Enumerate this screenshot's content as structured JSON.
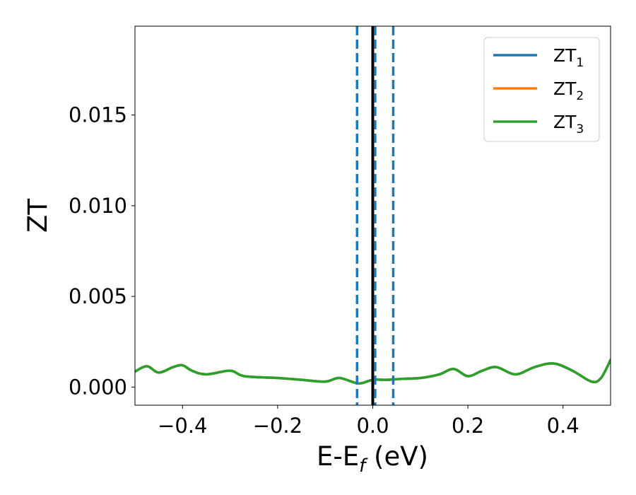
{
  "chart_data": {
    "type": "line",
    "title": "",
    "xlabel": {
      "main": "E-E",
      "sub": "f",
      "suffix": " (eV)"
    },
    "ylabel": "ZT",
    "xlim": [
      -0.5,
      0.5
    ],
    "ylim": [
      -0.001,
      0.0199
    ],
    "xticks": [
      -0.4,
      -0.2,
      0.0,
      0.2,
      0.4
    ],
    "xtick_labels": [
      "−0.4",
      "−0.2",
      "0.0",
      "0.2",
      "0.4"
    ],
    "yticks": [
      0.0,
      0.005,
      0.01,
      0.015
    ],
    "ytick_labels": [
      "0.000",
      "0.005",
      "0.010",
      "0.015"
    ],
    "grid": false,
    "legend_position": "top-right",
    "series": [
      {
        "name": "ZT",
        "sub": "1",
        "color": "#1f77b4",
        "x": [
          -0.5,
          -0.475,
          -0.45,
          -0.42,
          -0.4,
          -0.38,
          -0.35,
          -0.3,
          -0.27,
          -0.2,
          -0.15,
          -0.1,
          -0.07,
          -0.03,
          0.0,
          0.03,
          0.06,
          0.1,
          0.14,
          0.17,
          0.2,
          0.23,
          0.26,
          0.3,
          0.34,
          0.38,
          0.42,
          0.46,
          0.48,
          0.5
        ],
        "y": [
          0.00085,
          0.00115,
          0.0008,
          0.0011,
          0.0012,
          0.0009,
          0.0007,
          0.0009,
          0.0006,
          0.0005,
          0.0004,
          0.0003,
          0.0005,
          0.0002,
          0.0004,
          0.0004,
          0.00045,
          0.0005,
          0.0007,
          0.001,
          0.0006,
          0.0009,
          0.0011,
          0.0007,
          0.0011,
          0.0013,
          0.0009,
          0.0003,
          0.0005,
          0.0015
        ]
      },
      {
        "name": "ZT",
        "sub": "2",
        "color": "#ff7f0e",
        "x": [
          -0.5,
          -0.475,
          -0.45,
          -0.42,
          -0.4,
          -0.38,
          -0.35,
          -0.3,
          -0.27,
          -0.2,
          -0.15,
          -0.1,
          -0.07,
          -0.03,
          0.0,
          0.03,
          0.06,
          0.1,
          0.14,
          0.17,
          0.2,
          0.23,
          0.26,
          0.3,
          0.34,
          0.38,
          0.42,
          0.46,
          0.48,
          0.5
        ],
        "y": [
          0.00085,
          0.00115,
          0.0008,
          0.0011,
          0.0012,
          0.0009,
          0.0007,
          0.0009,
          0.0006,
          0.0005,
          0.0004,
          0.0003,
          0.0005,
          0.0002,
          0.0004,
          0.0004,
          0.00045,
          0.0005,
          0.0007,
          0.001,
          0.0006,
          0.0009,
          0.0011,
          0.0007,
          0.0011,
          0.0013,
          0.0009,
          0.0003,
          0.0005,
          0.0015
        ]
      },
      {
        "name": "ZT",
        "sub": "3",
        "color": "#2ca02c",
        "x": [
          -0.5,
          -0.475,
          -0.45,
          -0.42,
          -0.4,
          -0.38,
          -0.35,
          -0.3,
          -0.27,
          -0.2,
          -0.15,
          -0.1,
          -0.07,
          -0.03,
          0.0,
          0.03,
          0.06,
          0.1,
          0.14,
          0.17,
          0.2,
          0.23,
          0.26,
          0.3,
          0.34,
          0.38,
          0.42,
          0.46,
          0.48,
          0.5
        ],
        "y": [
          0.00085,
          0.00115,
          0.0008,
          0.0011,
          0.0012,
          0.0009,
          0.0007,
          0.0009,
          0.0006,
          0.0005,
          0.0004,
          0.0003,
          0.0005,
          0.0002,
          0.0004,
          0.0004,
          0.00045,
          0.0005,
          0.0007,
          0.001,
          0.0006,
          0.0009,
          0.0011,
          0.0007,
          0.0011,
          0.0013,
          0.0009,
          0.0003,
          0.0005,
          0.0015
        ]
      }
    ],
    "vlines": [
      {
        "x": 0.0,
        "style": "solid",
        "color": "#000000"
      },
      {
        "x": -0.033,
        "style": "dashed",
        "color": "#1f77b4"
      },
      {
        "x": 0.005,
        "style": "dashed",
        "color": "#1f77b4"
      },
      {
        "x": 0.043,
        "style": "dashed",
        "color": "#1f77b4"
      }
    ]
  }
}
